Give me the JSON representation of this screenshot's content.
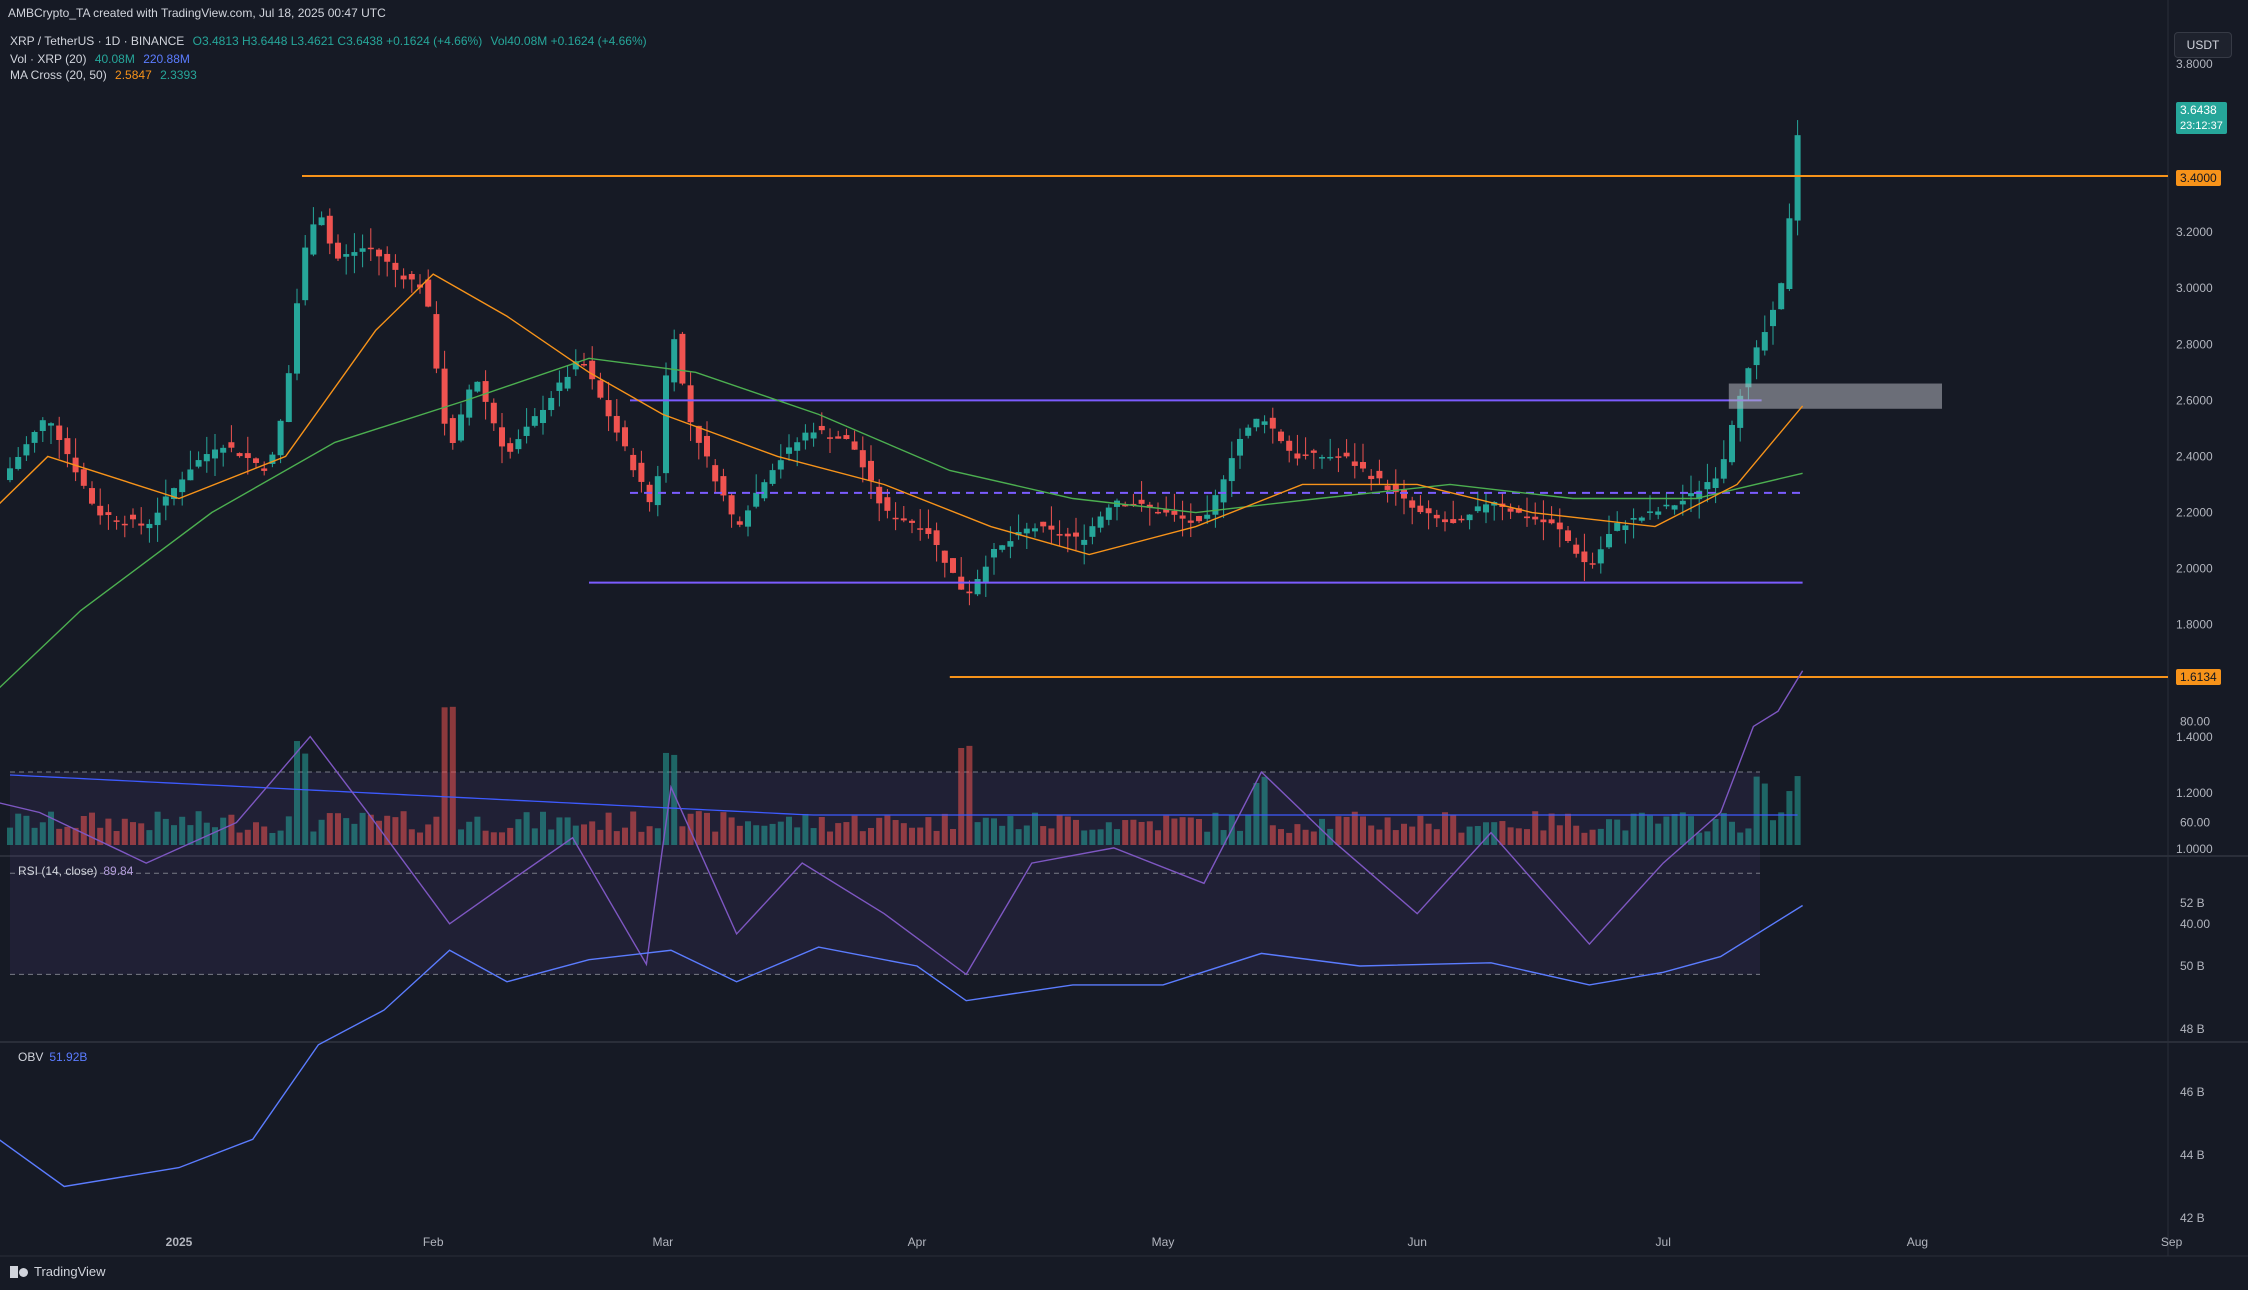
{
  "header": {
    "author_line": "AMBCrypto_TA created with TradingView.com, Jul 18, 2025 00:47 UTC"
  },
  "legend": {
    "symbol": "XRP / TetherUS · 1D · BINANCE",
    "ohlc": "O3.4813  H3.6448  L3.4621  C3.6438  +0.1624 (+4.66%)",
    "vol_inline": "Vol40.08M  +0.1624 (+4.66%)",
    "vol_label": "Vol · XRP (20)",
    "vol_value": "40.08M",
    "vol_ma": "220.88M",
    "ma_label": "MA Cross (20, 50)",
    "ma20": "2.5847",
    "ma50": "2.3393"
  },
  "currency": "USDT",
  "price_tags": {
    "last_price": "3.6438",
    "countdown": "23:12:37",
    "resistance": "3.4000",
    "support": "1.6134"
  },
  "rsi": {
    "label": "RSI (14, close)",
    "value": "89.84"
  },
  "obv": {
    "label": "OBV",
    "value": "51.92B"
  },
  "footer": {
    "brand": "TradingView"
  },
  "colors": {
    "up": "#26a69a",
    "down": "#ef5350",
    "orange": "#f7931a",
    "purple": "#7b5cff",
    "green_ma": "#4caf50",
    "rsi": "#7e57c2",
    "obv": "#5b7cff"
  },
  "chart_data": {
    "type": "candlestick",
    "timeframe": "1D",
    "x_ticks": [
      "2025",
      "Feb",
      "Mar",
      "Apr",
      "May",
      "Jun",
      "Jul",
      "Aug",
      "Sep"
    ],
    "price_axis": {
      "ticks": [
        "3.8000",
        "3.6000",
        "3.4000",
        "3.2000",
        "3.0000",
        "2.8000",
        "2.6000",
        "2.4000",
        "2.2000",
        "2.0000",
        "1.8000",
        "1.6000",
        "1.4000",
        "1.2000",
        "1.0000"
      ],
      "range": [
        1.0,
        3.8
      ]
    },
    "rsi_axis": {
      "ticks": [
        "80.00",
        "60.00",
        "40.00"
      ],
      "range": [
        20,
        100
      ],
      "bands": [
        30,
        50,
        70
      ]
    },
    "obv_axis": {
      "ticks": [
        "52 B",
        "50 B",
        "48 B",
        "46 B",
        "44 B",
        "42 B"
      ],
      "range": [
        41.5,
        52.5
      ]
    },
    "key_levels": {
      "resistance": 3.4,
      "support": 1.6134,
      "range_high": 2.6,
      "range_mid": 2.27,
      "range_low": 1.95
    },
    "bullish_order_block": [
      2.57,
      2.66
    ],
    "path": [
      [
        "2024-12-02",
        2.35
      ],
      [
        "2024-12-10",
        2.3
      ],
      [
        "2024-12-16",
        2.55
      ],
      [
        "2024-12-22",
        2.2
      ],
      [
        "2024-12-28",
        2.15
      ],
      [
        "2025-01-02",
        2.35
      ],
      [
        "2025-01-06",
        2.45
      ],
      [
        "2025-01-12",
        2.35
      ],
      [
        "2025-01-14",
        2.6
      ],
      [
        "2025-01-16",
        3.1
      ],
      [
        "2025-01-18",
        3.3
      ],
      [
        "2025-01-20",
        3.1
      ],
      [
        "2025-01-24",
        3.15
      ],
      [
        "2025-01-28",
        3.05
      ],
      [
        "2025-01-31",
        3.0
      ],
      [
        "2025-02-03",
        2.4
      ],
      [
        "2025-02-06",
        2.7
      ],
      [
        "2025-02-10",
        2.4
      ],
      [
        "2025-02-15",
        2.6
      ],
      [
        "2025-02-19",
        2.75
      ],
      [
        "2025-02-24",
        2.45
      ],
      [
        "2025-02-28",
        2.2
      ],
      [
        "2025-03-02",
        2.9
      ],
      [
        "2025-03-04",
        2.55
      ],
      [
        "2025-03-10",
        2.15
      ],
      [
        "2025-03-14",
        2.35
      ],
      [
        "2025-03-19",
        2.5
      ],
      [
        "2025-03-24",
        2.45
      ],
      [
        "2025-03-28",
        2.2
      ],
      [
        "2025-04-02",
        2.15
      ],
      [
        "2025-04-07",
        1.9
      ],
      [
        "2025-04-10",
        2.05
      ],
      [
        "2025-04-15",
        2.15
      ],
      [
        "2025-04-21",
        2.1
      ],
      [
        "2025-04-25",
        2.25
      ],
      [
        "2025-05-01",
        2.2
      ],
      [
        "2025-05-06",
        2.15
      ],
      [
        "2025-05-10",
        2.45
      ],
      [
        "2025-05-13",
        2.55
      ],
      [
        "2025-05-17",
        2.4
      ],
      [
        "2025-05-23",
        2.4
      ],
      [
        "2025-05-28",
        2.3
      ],
      [
        "2025-06-01",
        2.2
      ],
      [
        "2025-06-06",
        2.15
      ],
      [
        "2025-06-10",
        2.25
      ],
      [
        "2025-06-13",
        2.2
      ],
      [
        "2025-06-18",
        2.15
      ],
      [
        "2025-06-22",
        2.0
      ],
      [
        "2025-06-25",
        2.15
      ],
      [
        "2025-06-30",
        2.2
      ],
      [
        "2025-07-04",
        2.25
      ],
      [
        "2025-07-08",
        2.35
      ],
      [
        "2025-07-10",
        2.6
      ],
      [
        "2025-07-12",
        2.75
      ],
      [
        "2025-07-15",
        2.95
      ],
      [
        "2025-07-16",
        3.1
      ],
      [
        "2025-07-17",
        3.5
      ],
      [
        "2025-07-18",
        3.64
      ]
    ],
    "ma20_path": [
      [
        "2024-12-02",
        2.0
      ],
      [
        "2024-12-16",
        2.4
      ],
      [
        "2025-01-01",
        2.25
      ],
      [
        "2025-01-14",
        2.4
      ],
      [
        "2025-01-25",
        2.85
      ],
      [
        "2025-02-01",
        3.05
      ],
      [
        "2025-02-10",
        2.9
      ],
      [
        "2025-02-20",
        2.7
      ],
      [
        "2025-03-01",
        2.55
      ],
      [
        "2025-03-15",
        2.4
      ],
      [
        "2025-03-28",
        2.3
      ],
      [
        "2025-04-10",
        2.15
      ],
      [
        "2025-04-22",
        2.05
      ],
      [
        "2025-05-05",
        2.15
      ],
      [
        "2025-05-18",
        2.3
      ],
      [
        "2025-06-01",
        2.3
      ],
      [
        "2025-06-15",
        2.2
      ],
      [
        "2025-06-30",
        2.15
      ],
      [
        "2025-07-10",
        2.3
      ],
      [
        "2025-07-18",
        2.58
      ]
    ],
    "ma50_path": [
      [
        "2024-12-02",
        1.35
      ],
      [
        "2024-12-20",
        1.85
      ],
      [
        "2025-01-05",
        2.2
      ],
      [
        "2025-01-20",
        2.45
      ],
      [
        "2025-02-05",
        2.6
      ],
      [
        "2025-02-20",
        2.75
      ],
      [
        "2025-03-05",
        2.7
      ],
      [
        "2025-03-20",
        2.55
      ],
      [
        "2025-04-05",
        2.35
      ],
      [
        "2025-04-20",
        2.25
      ],
      [
        "2025-05-05",
        2.2
      ],
      [
        "2025-05-20",
        2.25
      ],
      [
        "2025-06-05",
        2.3
      ],
      [
        "2025-06-20",
        2.25
      ],
      [
        "2025-07-05",
        2.25
      ],
      [
        "2025-07-18",
        2.34
      ]
    ],
    "rsi_path": [
      [
        "2024-12-02",
        67
      ],
      [
        "2024-12-15",
        62
      ],
      [
        "2024-12-28",
        52
      ],
      [
        "2025-01-08",
        60
      ],
      [
        "2025-01-17",
        77
      ],
      [
        "2025-01-24",
        62
      ],
      [
        "2025-02-03",
        40
      ],
      [
        "2025-02-10",
        48
      ],
      [
        "2025-02-18",
        57
      ],
      [
        "2025-02-27",
        32
      ],
      [
        "2025-03-02",
        67
      ],
      [
        "2025-03-10",
        38
      ],
      [
        "2025-03-18",
        52
      ],
      [
        "2025-03-28",
        42
      ],
      [
        "2025-04-07",
        30
      ],
      [
        "2025-04-15",
        52
      ],
      [
        "2025-04-25",
        55
      ],
      [
        "2025-05-06",
        48
      ],
      [
        "2025-05-13",
        70
      ],
      [
        "2025-05-22",
        56
      ],
      [
        "2025-06-01",
        42
      ],
      [
        "2025-06-10",
        58
      ],
      [
        "2025-06-22",
        36
      ],
      [
        "2025-07-01",
        52
      ],
      [
        "2025-07-08",
        62
      ],
      [
        "2025-07-12",
        79
      ],
      [
        "2025-07-15",
        82
      ],
      [
        "2025-07-18",
        90
      ]
    ],
    "obv_path": [
      [
        "2024-12-02",
        43.2
      ],
      [
        "2024-12-10",
        44.5
      ],
      [
        "2024-12-18",
        43.0
      ],
      [
        "2025-01-01",
        43.6
      ],
      [
        "2025-01-10",
        44.5
      ],
      [
        "2025-01-18",
        47.5
      ],
      [
        "2025-01-26",
        48.6
      ],
      [
        "2025-02-03",
        50.5
      ],
      [
        "2025-02-10",
        49.5
      ],
      [
        "2025-02-20",
        50.2
      ],
      [
        "2025-03-02",
        50.5
      ],
      [
        "2025-03-10",
        49.5
      ],
      [
        "2025-03-20",
        50.6
      ],
      [
        "2025-04-01",
        50.0
      ],
      [
        "2025-04-07",
        48.9
      ],
      [
        "2025-04-20",
        49.4
      ],
      [
        "2025-05-01",
        49.4
      ],
      [
        "2025-05-13",
        50.4
      ],
      [
        "2025-05-25",
        50.0
      ],
      [
        "2025-06-10",
        50.1
      ],
      [
        "2025-06-22",
        49.4
      ],
      [
        "2025-07-01",
        49.8
      ],
      [
        "2025-07-08",
        50.3
      ],
      [
        "2025-07-18",
        51.92
      ]
    ],
    "volume_spikes": [
      [
        "2024-12-02",
        25
      ],
      [
        "2024-12-10",
        55
      ],
      [
        "2025-01-16",
        55
      ],
      [
        "2025-02-03",
        90
      ],
      [
        "2025-03-02",
        60
      ],
      [
        "2025-04-07",
        65
      ],
      [
        "2025-05-13",
        28
      ],
      [
        "2025-07-13",
        28
      ],
      [
        "2025-07-17",
        32
      ]
    ]
  }
}
